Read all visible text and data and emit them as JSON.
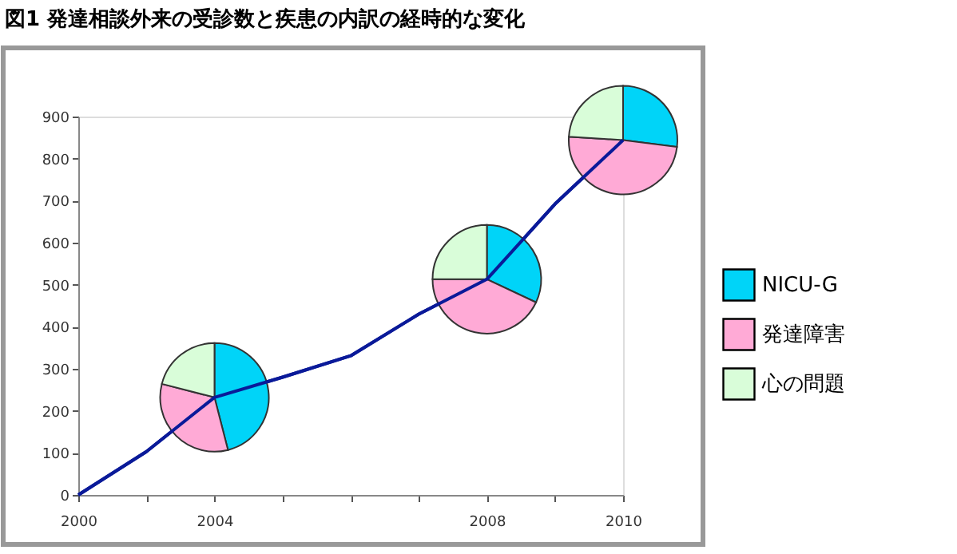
{
  "chart_data": [
    {
      "type": "line",
      "title": "図1 発達相談外来の受診数と疾患の内訳の経時的な変化",
      "categories": [
        "2000",
        null,
        "2004",
        null,
        null,
        null,
        "2008",
        null,
        "2010"
      ],
      "values": [
        0,
        103,
        232,
        280,
        331,
        430,
        513,
        692,
        844
      ],
      "color": "#0a1a99",
      "ylim": [
        0,
        900
      ],
      "yticks": [
        0,
        100,
        200,
        300,
        400,
        500,
        600,
        700,
        800,
        900
      ],
      "grid": false
    },
    {
      "type": "pie",
      "categories": [
        "NICU-G",
        "発達障害",
        "心の問題"
      ],
      "colors": [
        "#00d4f8",
        "#ffaad6",
        "#d9fdd9"
      ],
      "legend": "right",
      "series": [
        {
          "values": [
            46,
            33,
            21
          ]
        },
        {
          "values": [
            32,
            43,
            25
          ]
        },
        {
          "values": [
            27,
            49,
            24
          ]
        }
      ]
    }
  ]
}
